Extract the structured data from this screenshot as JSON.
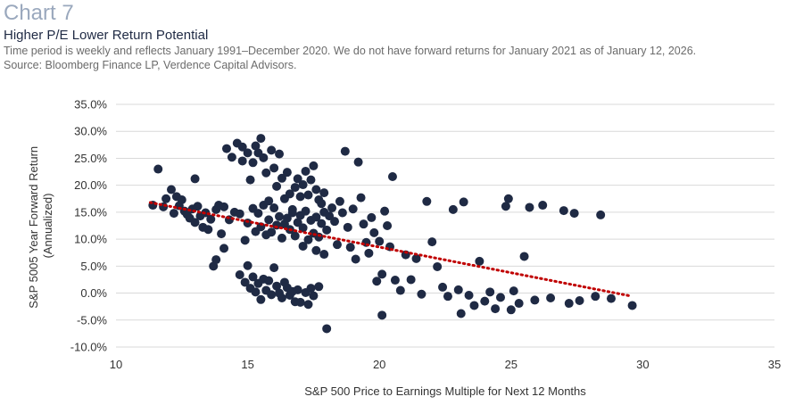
{
  "header": {
    "chart_number": "Chart 7",
    "title": "Higher P/E Lower Return Potential",
    "subtitle": "Time period is weekly and reflects January 1991–December 2020. We do not have forward returns for January 2021 as of January 12, 2026.",
    "source": "Source: Bloomberg Finance LP, Verdence Capital Advisors."
  },
  "colors": {
    "points": "#1f2a44",
    "trendline": "#c00000",
    "gridline": "#d9d9d9",
    "chart_label": "#9aa8bd"
  },
  "chart_data": {
    "type": "scatter",
    "title": "Higher P/E Lower Return Potential",
    "xlabel": "S&P 500 Price to Earnings Multiple for Next 12 Months",
    "ylabel_lines": [
      "S&P 5005 Year Forward Return",
      "(Annualized)"
    ],
    "xlim": [
      10,
      35
    ],
    "ylim": [
      -10,
      35
    ],
    "x_ticks": [
      10,
      15,
      20,
      25,
      30,
      35
    ],
    "x_tick_labels": [
      "10",
      "15",
      "20",
      "25",
      "30",
      "35"
    ],
    "y_ticks": [
      -10,
      -5,
      0,
      5,
      10,
      15,
      20,
      25,
      30,
      35
    ],
    "y_tick_labels": [
      "-10.0%",
      "-5.0%",
      "0.0%",
      "5.0%",
      "10.0%",
      "15.0%",
      "20.0%",
      "25.0%",
      "30.0%",
      "35.0%"
    ],
    "grid": "horizontal",
    "legend": "none",
    "trendline": {
      "style": "dotted",
      "x": [
        11.3,
        29.5
      ],
      "y": [
        16.8,
        -0.5
      ]
    },
    "series": [
      {
        "points": [
          [
            11.4,
            16.3
          ],
          [
            11.6,
            23.0
          ],
          [
            11.8,
            16.0
          ],
          [
            11.9,
            17.5
          ],
          [
            12.1,
            19.2
          ],
          [
            12.2,
            14.8
          ],
          [
            12.3,
            17.9
          ],
          [
            12.4,
            16.2
          ],
          [
            12.5,
            17.3
          ],
          [
            12.6,
            15.2
          ],
          [
            12.7,
            14.6
          ],
          [
            12.8,
            13.9
          ],
          [
            12.9,
            15.6
          ],
          [
            13.0,
            21.2
          ],
          [
            13.0,
            13.1
          ],
          [
            13.1,
            16.1
          ],
          [
            13.2,
            14.3
          ],
          [
            13.3,
            12.2
          ],
          [
            13.4,
            14.9
          ],
          [
            13.5,
            11.8
          ],
          [
            13.6,
            13.7
          ],
          [
            13.7,
            5.0
          ],
          [
            13.8,
            6.2
          ],
          [
            13.8,
            15.5
          ],
          [
            13.9,
            16.3
          ],
          [
            14.0,
            11.0
          ],
          [
            14.1,
            8.3
          ],
          [
            14.1,
            16.0
          ],
          [
            14.2,
            26.8
          ],
          [
            14.3,
            13.6
          ],
          [
            14.4,
            25.2
          ],
          [
            14.5,
            15.0
          ],
          [
            14.6,
            27.8
          ],
          [
            14.7,
            3.4
          ],
          [
            14.7,
            14.7
          ],
          [
            14.8,
            24.5
          ],
          [
            14.8,
            27.1
          ],
          [
            14.9,
            9.8
          ],
          [
            14.9,
            2.0
          ],
          [
            15.0,
            26.0
          ],
          [
            15.0,
            5.1
          ],
          [
            15.0,
            13.0
          ],
          [
            15.1,
            0.9
          ],
          [
            15.1,
            21.0
          ],
          [
            15.2,
            24.2
          ],
          [
            15.2,
            3.0
          ],
          [
            15.2,
            15.7
          ],
          [
            15.3,
            27.3
          ],
          [
            15.3,
            0.2
          ],
          [
            15.3,
            11.4
          ],
          [
            15.4,
            26.0
          ],
          [
            15.4,
            1.8
          ],
          [
            15.4,
            14.8
          ],
          [
            15.5,
            28.7
          ],
          [
            15.5,
            -1.2
          ],
          [
            15.5,
            12.3
          ],
          [
            15.6,
            25.1
          ],
          [
            15.6,
            2.6
          ],
          [
            15.6,
            16.3
          ],
          [
            15.7,
            22.3
          ],
          [
            15.7,
            0.5
          ],
          [
            15.7,
            10.8
          ],
          [
            15.8,
            17.1
          ],
          [
            15.8,
            2.3
          ],
          [
            15.8,
            13.6
          ],
          [
            15.9,
            26.5
          ],
          [
            15.9,
            -0.3
          ],
          [
            15.9,
            11.3
          ],
          [
            16.0,
            23.2
          ],
          [
            16.0,
            4.7
          ],
          [
            16.0,
            15.8
          ],
          [
            16.1,
            19.8
          ],
          [
            16.1,
            1.3
          ],
          [
            16.1,
            12.6
          ],
          [
            16.2,
            25.8
          ],
          [
            16.2,
            0.0
          ],
          [
            16.2,
            14.2
          ],
          [
            16.3,
            21.3
          ],
          [
            16.3,
            -0.9
          ],
          [
            16.3,
            10.2
          ],
          [
            16.4,
            17.5
          ],
          [
            16.4,
            2.0
          ],
          [
            16.4,
            12.8
          ],
          [
            16.5,
            22.4
          ],
          [
            16.5,
            1.0
          ],
          [
            16.5,
            13.9
          ],
          [
            16.6,
            18.4
          ],
          [
            16.6,
            -0.4
          ],
          [
            16.6,
            11.8
          ],
          [
            16.7,
            15.5
          ],
          [
            16.7,
            0.3
          ],
          [
            16.7,
            14.9
          ],
          [
            16.8,
            19.6
          ],
          [
            16.8,
            -1.6
          ],
          [
            16.8,
            10.6
          ],
          [
            16.9,
            21.2
          ],
          [
            16.9,
            0.6
          ],
          [
            16.9,
            13.1
          ],
          [
            17.0,
            17.9
          ],
          [
            17.0,
            -1.7
          ],
          [
            17.0,
            14.4
          ],
          [
            17.1,
            20.1
          ],
          [
            17.1,
            8.7
          ],
          [
            17.1,
            12.1
          ],
          [
            17.2,
            22.6
          ],
          [
            17.2,
            0.1
          ],
          [
            17.2,
            15.2
          ],
          [
            17.3,
            18.2
          ],
          [
            17.3,
            -2.1
          ],
          [
            17.3,
            9.9
          ],
          [
            17.4,
            21.0
          ],
          [
            17.4,
            0.9
          ],
          [
            17.4,
            13.5
          ],
          [
            17.5,
            23.6
          ],
          [
            17.5,
            -0.5
          ],
          [
            17.5,
            11.1
          ],
          [
            17.6,
            19.2
          ],
          [
            17.6,
            7.9
          ],
          [
            17.6,
            14.1
          ],
          [
            17.7,
            17.3
          ],
          [
            17.7,
            1.2
          ],
          [
            17.7,
            10.4
          ],
          [
            17.8,
            16.6
          ],
          [
            17.8,
            12.9
          ],
          [
            17.9,
            18.6
          ],
          [
            17.9,
            7.2
          ],
          [
            17.9,
            15.0
          ],
          [
            18.0,
            -6.6
          ],
          [
            18.0,
            11.7
          ],
          [
            18.1,
            14.3
          ],
          [
            18.2,
            15.8
          ],
          [
            18.3,
            13.3
          ],
          [
            18.4,
            9.0
          ],
          [
            18.5,
            17.0
          ],
          [
            18.6,
            14.9
          ],
          [
            18.7,
            26.3
          ],
          [
            18.8,
            12.2
          ],
          [
            18.9,
            8.5
          ],
          [
            19.0,
            15.6
          ],
          [
            19.1,
            6.3
          ],
          [
            19.2,
            24.3
          ],
          [
            19.3,
            17.7
          ],
          [
            19.4,
            12.8
          ],
          [
            19.5,
            9.4
          ],
          [
            19.6,
            7.4
          ],
          [
            19.7,
            14.0
          ],
          [
            19.8,
            11.2
          ],
          [
            19.9,
            2.2
          ],
          [
            20.0,
            9.6
          ],
          [
            20.1,
            -4.1
          ],
          [
            20.1,
            3.5
          ],
          [
            20.2,
            15.2
          ],
          [
            20.3,
            12.5
          ],
          [
            20.4,
            8.6
          ],
          [
            20.5,
            21.6
          ],
          [
            20.6,
            2.4
          ],
          [
            20.8,
            0.5
          ],
          [
            21.0,
            7.1
          ],
          [
            21.2,
            2.5
          ],
          [
            21.4,
            6.4
          ],
          [
            21.6,
            -0.2
          ],
          [
            21.8,
            17.0
          ],
          [
            22.0,
            9.5
          ],
          [
            22.2,
            4.9
          ],
          [
            22.4,
            1.1
          ],
          [
            22.6,
            -0.6
          ],
          [
            22.8,
            15.5
          ],
          [
            23.0,
            0.6
          ],
          [
            23.1,
            -3.8
          ],
          [
            23.2,
            16.9
          ],
          [
            23.4,
            -0.4
          ],
          [
            23.6,
            -2.3
          ],
          [
            23.8,
            5.9
          ],
          [
            24.0,
            -1.5
          ],
          [
            24.2,
            0.2
          ],
          [
            24.4,
            -2.9
          ],
          [
            24.6,
            -0.8
          ],
          [
            24.8,
            16.1
          ],
          [
            24.9,
            17.5
          ],
          [
            25.0,
            -3.1
          ],
          [
            25.1,
            0.4
          ],
          [
            25.3,
            -1.9
          ],
          [
            25.5,
            6.8
          ],
          [
            25.7,
            15.9
          ],
          [
            25.9,
            -1.3
          ],
          [
            26.2,
            16.3
          ],
          [
            26.5,
            -0.9
          ],
          [
            27.0,
            15.3
          ],
          [
            27.2,
            -1.9
          ],
          [
            27.4,
            14.8
          ],
          [
            27.6,
            -1.4
          ],
          [
            28.2,
            -0.6
          ],
          [
            28.4,
            14.5
          ],
          [
            28.8,
            -1.0
          ],
          [
            29.6,
            -2.3
          ]
        ]
      }
    ]
  }
}
